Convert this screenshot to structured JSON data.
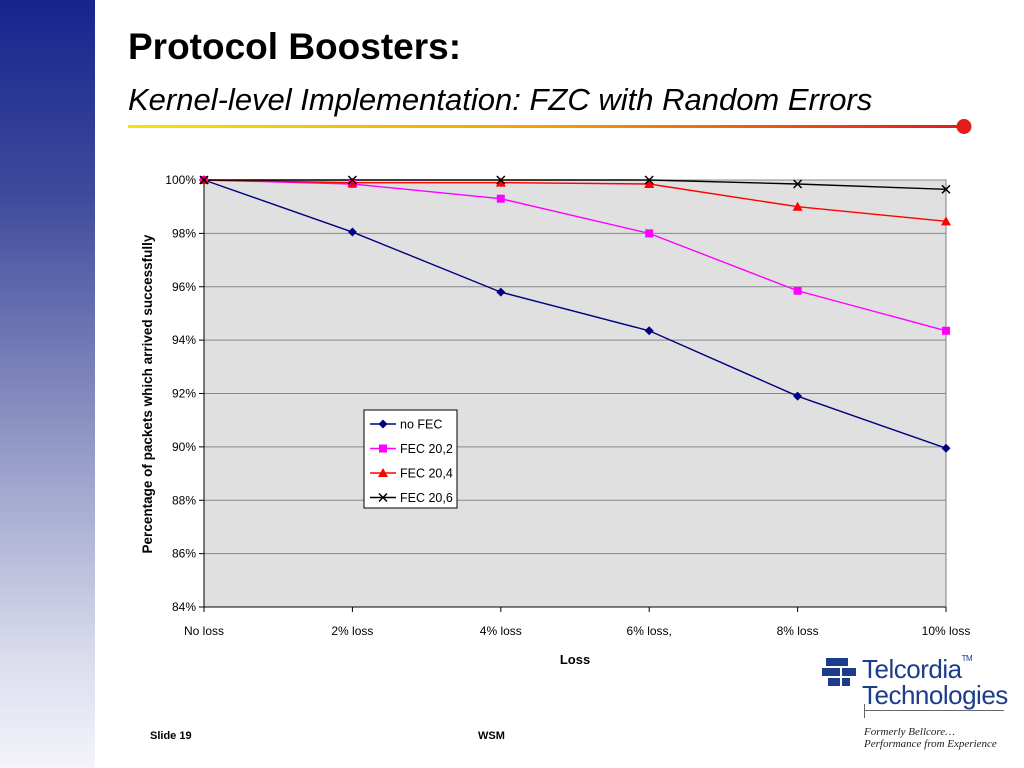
{
  "slide": {
    "title": "Protocol Boosters:",
    "subtitle": "Kernel-level Implementation: FZC with Random Errors",
    "footer_left": "Slide 19",
    "footer_center": "WSM"
  },
  "logo": {
    "line1": "Telcordia",
    "tm": "TM",
    "line2": "Technologies",
    "tagline1": "Formerly Bellcore…",
    "tagline2": "Performance from Experience"
  },
  "colors": {
    "plot_bg": "#e0e0e0",
    "grid": "#888888",
    "accent_rule_start": "#f4e600",
    "accent_rule_end": "#e41b1b"
  },
  "chart_data": {
    "type": "line",
    "xlabel": "Loss",
    "ylabel": "Percentage of packets which arrived successfully",
    "categories": [
      "No loss",
      "2% loss",
      "4% loss",
      "6% loss,",
      "8% loss",
      "10% loss"
    ],
    "ylim": [
      84,
      100
    ],
    "yticks": [
      "84%",
      "86%",
      "88%",
      "90%",
      "92%",
      "94%",
      "96%",
      "98%",
      "100%"
    ],
    "grid": true,
    "legend_position": "center",
    "series": [
      {
        "name": "no FEC",
        "color": "#000080",
        "marker": "diamond",
        "values": [
          100,
          98.05,
          95.8,
          94.35,
          91.9,
          89.95
        ]
      },
      {
        "name": "FEC 20,2",
        "color": "#ff00ff",
        "marker": "square",
        "values": [
          100,
          99.85,
          99.3,
          98.0,
          95.85,
          94.35
        ]
      },
      {
        "name": "FEC 20,4",
        "color": "#ff0000",
        "marker": "triangle",
        "values": [
          100,
          99.9,
          99.9,
          99.85,
          99.0,
          98.45
        ]
      },
      {
        "name": "FEC 20,6",
        "color": "#000000",
        "marker": "x",
        "values": [
          100,
          100,
          100,
          100,
          99.85,
          99.65
        ]
      }
    ]
  }
}
